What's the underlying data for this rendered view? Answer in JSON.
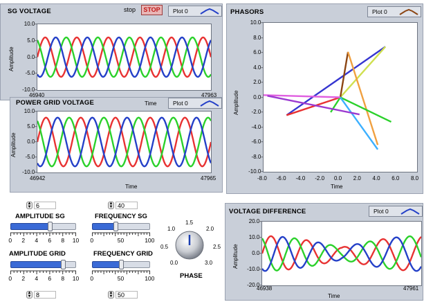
{
  "sg_panel": {
    "title": "SG VOLTAGE",
    "stop_label": "stop",
    "stop_button": "STOP",
    "legend": "Plot 0",
    "ylabel": "Amplitude",
    "xlabel": "Time",
    "y_ticks": [
      "10.0-",
      "5.0-",
      "0.0-",
      "-5.0-",
      "-10.0-"
    ],
    "x_start": "46940",
    "x_end": "47963"
  },
  "grid_panel": {
    "title": "POWER GRID VOLTAGE",
    "legend": "Plot 0",
    "ylabel": "Amplitude",
    "xlabel": "Time",
    "y_ticks": [
      "10.0-",
      "5.0-",
      "0.0-",
      "-5.0-",
      "-10.0-"
    ],
    "x_start": "46942",
    "x_end": "47965"
  },
  "phasor_panel": {
    "title": "PHASORS",
    "legend": "Plot 0",
    "ylabel": "Amplitude",
    "xlabel": "Time",
    "y_ticks": [
      "10.0-",
      "8.0-",
      "6.0-",
      "4.0-",
      "2.0-",
      "0.0-",
      "-2.0-",
      "-4.0-",
      "-6.0-",
      "-8.0-",
      "-10.0-"
    ],
    "x_ticks": [
      "-8.0",
      "-6.0",
      "-4.0",
      "-2.0",
      "0.0",
      "2.0",
      "4.0",
      "6.0",
      "8.0"
    ]
  },
  "diff_panel": {
    "title": "VOLTAGE DIFFERENCE",
    "legend": "Plot 0",
    "ylabel": "Amplitude",
    "xlabel": "Time",
    "y_ticks": [
      "20.0-",
      "10.0-",
      "0.0-",
      "-10.0-",
      "-20.0-"
    ],
    "x_start": "46938",
    "x_end": "47961"
  },
  "controls": {
    "amplitude_sg": {
      "title": "AMPLITUDE  SG",
      "value": "6",
      "scale": [
        "0",
        "2",
        "4",
        "6",
        "8",
        "10"
      ],
      "fraction": 0.6
    },
    "frequency_sg": {
      "title": "FREQUENCY  SG",
      "value": "40",
      "scale": [
        "0",
        "50",
        "100"
      ],
      "fraction": 0.4
    },
    "amplitude_grid": {
      "title": "AMPLITUDE GRID",
      "value": "8",
      "scale": [
        "0",
        "2",
        "4",
        "6",
        "8",
        "10"
      ],
      "fraction": 0.8
    },
    "frequency_grid": {
      "title": "FREQUENCY  GRID",
      "value": "50",
      "scale": [
        "0",
        "50",
        "100"
      ],
      "fraction": 0.5
    },
    "phase": {
      "title": "PHASE",
      "scale": [
        "0.0",
        "0.5",
        "1.0",
        "1.5",
        "2.0",
        "2.5",
        "3.0"
      ]
    }
  },
  "chart_data": [
    {
      "type": "line",
      "title": "SG VOLTAGE",
      "xlabel": "Time",
      "ylabel": "Amplitude",
      "xlim": [
        46940,
        47963
      ],
      "ylim": [
        -10,
        10
      ],
      "series": [
        {
          "color": "#e83232",
          "amplitude": 6,
          "cycles": 5.5,
          "phase_deg": 0
        },
        {
          "color": "#2bd12b",
          "amplitude": 6,
          "cycles": 5.5,
          "phase_deg": 120
        },
        {
          "color": "#2440c8",
          "amplitude": 6,
          "cycles": 5.5,
          "phase_deg": 240
        }
      ]
    },
    {
      "type": "line",
      "title": "POWER GRID VOLTAGE",
      "xlabel": "Time",
      "ylabel": "Amplitude",
      "xlim": [
        46942,
        47965
      ],
      "ylim": [
        -10,
        10
      ],
      "series": [
        {
          "color": "#e83232",
          "amplitude": 8,
          "cycles": 5,
          "phase_deg": 0
        },
        {
          "color": "#2bd12b",
          "amplitude": 8,
          "cycles": 5,
          "phase_deg": 120
        },
        {
          "color": "#2440c8",
          "amplitude": 8,
          "cycles": 5,
          "phase_deg": 240
        }
      ]
    },
    {
      "type": "line",
      "title": "PHASORS",
      "xlabel": "Time",
      "ylabel": "Amplitude",
      "xlim": [
        -8,
        8
      ],
      "ylim": [
        -10,
        10
      ],
      "series": [
        {
          "color": "#3535d0",
          "x": [
            -5.6,
            4.7
          ],
          "y": [
            -2.4,
            6.8
          ]
        },
        {
          "color": "#d0e050",
          "x": [
            0.0,
            4.7
          ],
          "y": [
            0.0,
            6.8
          ]
        },
        {
          "color": "#8b4513",
          "x": [
            0.0,
            0.8
          ],
          "y": [
            0.0,
            6.1
          ]
        },
        {
          "color": "#f0a040",
          "x": [
            0.8,
            3.9
          ],
          "y": [
            6.1,
            -6.4
          ]
        },
        {
          "color": "#e83232",
          "x": [
            -5.6,
            0.0
          ],
          "y": [
            -2.4,
            0.0
          ]
        },
        {
          "color": "#2bd12b",
          "x": [
            0.0,
            5.3
          ],
          "y": [
            0.0,
            -3.3
          ]
        },
        {
          "color": "#2bd12b",
          "x": [
            -1.0,
            0.0
          ],
          "y": [
            -2.0,
            0.0
          ]
        },
        {
          "color": "#e060e0",
          "x": [
            -8.0,
            0.0
          ],
          "y": [
            0.3,
            0.0
          ]
        },
        {
          "color": "#3cb0ff",
          "x": [
            0.0,
            3.9
          ],
          "y": [
            0.0,
            -7.0
          ]
        },
        {
          "color": "#9b3ad0",
          "x": [
            -7.6,
            2.0
          ],
          "y": [
            0.2,
            -2.3
          ]
        }
      ]
    },
    {
      "type": "line",
      "title": "VOLTAGE DIFFERENCE",
      "xlabel": "Time",
      "ylabel": "Amplitude",
      "xlim": [
        46938,
        47961
      ],
      "ylim": [
        -20,
        20
      ],
      "series": [
        {
          "color": "#e83232",
          "amplitude": 11,
          "beat": true,
          "phase_deg": 0
        },
        {
          "color": "#2bd12b",
          "amplitude": 11,
          "beat": true,
          "phase_deg": 120
        },
        {
          "color": "#2440c8",
          "amplitude": 11,
          "beat": true,
          "phase_deg": 240
        }
      ]
    }
  ]
}
